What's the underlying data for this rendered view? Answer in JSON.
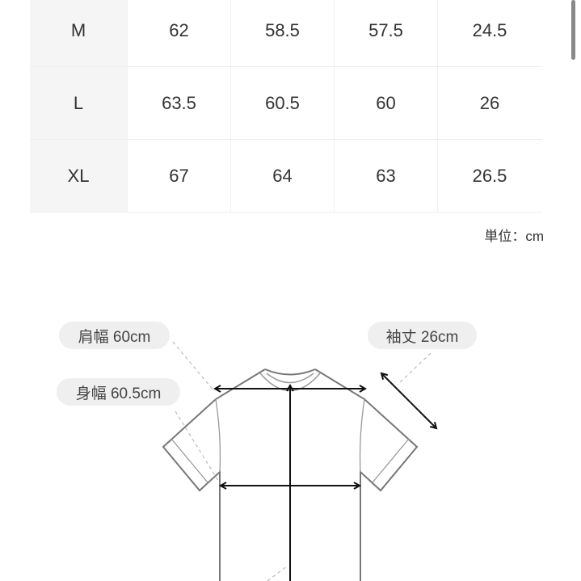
{
  "size_table": {
    "rows": [
      {
        "size": "M",
        "values": [
          "62",
          "58.5",
          "57.5",
          "24.5"
        ]
      },
      {
        "size": "L",
        "values": [
          "63.5",
          "60.5",
          "60",
          "26"
        ]
      },
      {
        "size": "XL",
        "values": [
          "67",
          "64",
          "63",
          "26.5"
        ]
      }
    ],
    "unit_label": "単位：cm"
  },
  "diagram": {
    "shoulder_label": "肩幅 60cm",
    "chest_label": "身幅 60.5cm",
    "sleeve_label": "袖丈 26cm"
  }
}
